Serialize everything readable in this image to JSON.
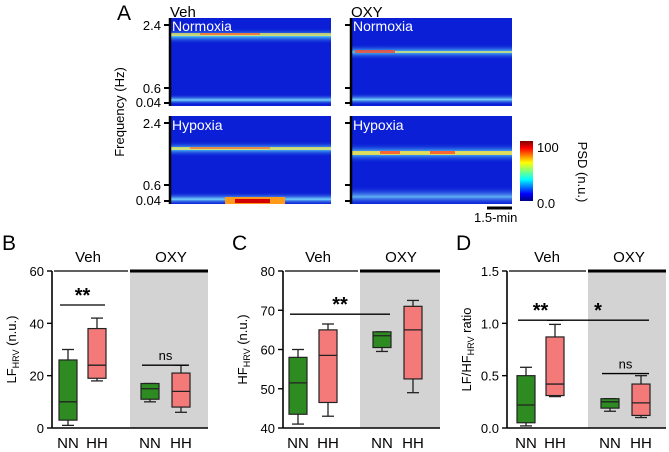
{
  "figure": {
    "panel_labels": [
      "A",
      "B",
      "C",
      "D"
    ],
    "colors": {
      "NN": "#2e8b22",
      "HH": "#f47a7a",
      "oxy_shade": "#d3d3d3",
      "box_stroke": "#222222"
    }
  },
  "panel_a": {
    "col_veh": "Veh",
    "col_oxy": "OXY",
    "row_normoxia": "Normoxia",
    "row_hypoxia": "Hypoxia",
    "ylabel": "Frequency (Hz)",
    "yticks": [
      "2.4",
      "0.6",
      "0.04"
    ],
    "colorbar_title": "PSD (n.u.)",
    "colorbar_ticks": [
      "100",
      "0.0"
    ],
    "scale_bar": "1.5-min"
  },
  "chart_data": [
    {
      "type": "box",
      "panel": "B",
      "ylabel": "LF",
      "ylabel_sub": "HRV",
      "ylabel_suffix": " (n.u.)",
      "ylim": [
        0,
        60
      ],
      "yticks": [
        "0",
        "20",
        "40",
        "60"
      ],
      "groups": [
        "Veh",
        "OXY"
      ],
      "categories": [
        "NN",
        "HH",
        "NN",
        "HH"
      ],
      "series": [
        {
          "name": "Veh NN",
          "min": 1,
          "q1": 3,
          "median": 10,
          "q3": 26,
          "max": 30
        },
        {
          "name": "Veh HH",
          "min": 18,
          "q1": 19,
          "median": 24,
          "q3": 38,
          "max": 42
        },
        {
          "name": "OXY NN",
          "min": 10,
          "q1": 11,
          "median": 15,
          "q3": 17,
          "max": 17
        },
        {
          "name": "OXY HH",
          "min": 6,
          "q1": 8,
          "median": 14,
          "q3": 21,
          "max": 24
        }
      ],
      "significance": [
        {
          "label": "**",
          "between": [
            0,
            1
          ],
          "at": 47
        },
        {
          "label": "ns",
          "between": [
            2,
            3
          ],
          "at": 24
        }
      ]
    },
    {
      "type": "box",
      "panel": "C",
      "ylabel": "HF",
      "ylabel_sub": "HRV",
      "ylabel_suffix": " (n.u.)",
      "ylim": [
        40,
        80
      ],
      "yticks": [
        "40",
        "50",
        "60",
        "70",
        "80"
      ],
      "groups": [
        "Veh",
        "OXY"
      ],
      "categories": [
        "NN",
        "HH",
        "NN",
        "HH"
      ],
      "series": [
        {
          "name": "Veh NN",
          "min": 41,
          "q1": 43.5,
          "median": 51.5,
          "q3": 58,
          "max": 60
        },
        {
          "name": "Veh HH",
          "min": 43,
          "q1": 46.5,
          "median": 58.5,
          "q3": 65,
          "max": 66.5
        },
        {
          "name": "OXY NN",
          "min": 59.5,
          "q1": 60.5,
          "median": 63.5,
          "q3": 64.5,
          "max": 64.5
        },
        {
          "name": "OXY HH",
          "min": 49,
          "q1": 52.5,
          "median": 65,
          "q3": 71,
          "max": 72.5
        }
      ],
      "significance": [
        {
          "label": "**",
          "between": [
            0,
            2
          ],
          "at": 69
        }
      ]
    },
    {
      "type": "box",
      "panel": "D",
      "ylabel": "LF/HF",
      "ylabel_sub": "HRV",
      "ylabel_suffix": " ratio",
      "ylim": [
        0,
        1.5
      ],
      "yticks": [
        "0.0",
        "0.5",
        "1.0",
        "1.5"
      ],
      "groups": [
        "Veh",
        "OXY"
      ],
      "categories": [
        "NN",
        "HH",
        "NN",
        "HH"
      ],
      "series": [
        {
          "name": "Veh NN",
          "min": 0.02,
          "q1": 0.05,
          "median": 0.22,
          "q3": 0.5,
          "max": 0.58
        },
        {
          "name": "Veh HH",
          "min": 0.3,
          "q1": 0.31,
          "median": 0.42,
          "q3": 0.87,
          "max": 0.99
        },
        {
          "name": "OXY NN",
          "min": 0.16,
          "q1": 0.19,
          "median": 0.25,
          "q3": 0.28,
          "max": 0.28
        },
        {
          "name": "OXY HH",
          "min": 0.1,
          "q1": 0.12,
          "median": 0.24,
          "q3": 0.42,
          "max": 0.5
        }
      ],
      "significance": [
        {
          "label": "**",
          "between": [
            0,
            1
          ],
          "at": 1.03
        },
        {
          "label": "*",
          "between": [
            1,
            3
          ],
          "at": 1.03
        },
        {
          "label": "ns",
          "between": [
            2,
            3
          ],
          "at": 0.52
        }
      ]
    }
  ]
}
